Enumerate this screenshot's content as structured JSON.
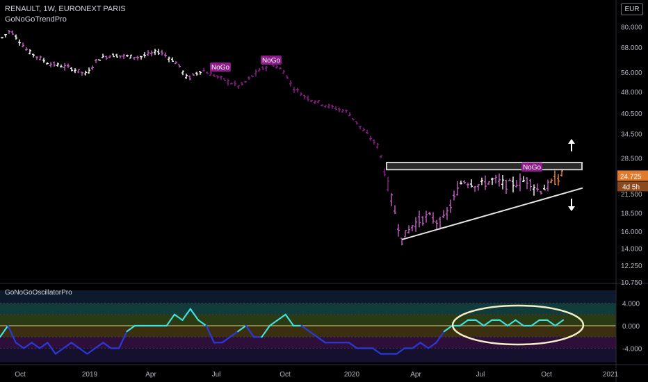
{
  "header": {
    "symbol_line": "RENAULT, 1W, EURONEXT PARIS",
    "indicator_main": "GoNoGoTrendPro",
    "indicator_osc": "GoNoGoOscillatorPro",
    "currency": "EUR"
  },
  "price_axis": {
    "ticks": [
      "80.000",
      "68.000",
      "56.000",
      "48.000",
      "40.500",
      "34.500",
      "28.500",
      "21.500",
      "18.500",
      "16.000",
      "14.000",
      "12.250",
      "10.750"
    ],
    "last_price": "24.725",
    "countdown": "4d 5h",
    "last_price_color": "#e07b2e"
  },
  "osc_axis": {
    "ticks": [
      "4.000",
      "0.000",
      "-4.000"
    ]
  },
  "time_axis": {
    "ticks": [
      "Oct",
      "2019",
      "Apr",
      "Jul",
      "Oct",
      "2020",
      "Apr",
      "Jul",
      "Oct",
      "2021"
    ]
  },
  "annotations": {
    "nogo_labels": [
      "NoGo",
      "NoGo",
      "NoGo"
    ]
  },
  "colors": {
    "nogo": "#8e1c8a",
    "nogo_light": "#c65fc4",
    "go": "#ffffff",
    "weak_go": "#f08a3a",
    "osc_go": "#3ee0e0",
    "osc_nogo": "#2a3ad8",
    "ellipse": "#f3f0c8"
  },
  "chart_data": [
    {
      "type": "ohlc",
      "title": "RENAULT, 1W, EURONEXT PARIS",
      "yscale": "log",
      "ylim": [
        10.75,
        88
      ],
      "series": [
        {
          "name": "GoNoGoTrendPro",
          "note": "weekly bars colored by trend state"
        }
      ],
      "x": [
        "2018-09",
        "2018-10",
        "2018-11",
        "2018-12",
        "2019-01",
        "2019-02",
        "2019-03",
        "2019-04",
        "2019-05",
        "2019-06",
        "2019-07",
        "2019-08",
        "2019-09",
        "2019-10",
        "2019-11",
        "2019-12",
        "2020-01",
        "2020-02",
        "2020-03",
        "2020-04",
        "2020-05",
        "2020-06",
        "2020-07",
        "2020-08",
        "2020-09",
        "2020-10"
      ],
      "close_approx": [
        76,
        71,
        66,
        63,
        62,
        64,
        63,
        62,
        56,
        54,
        53,
        52,
        56,
        48,
        44,
        42,
        40,
        35,
        16,
        17,
        18,
        22,
        23,
        24,
        23,
        24.7
      ],
      "resistance_zone": [
        26.0,
        27.5
      ],
      "trendline_support": [
        {
          "x": "2020-03",
          "y": 15.0
        },
        {
          "x": "2020-11",
          "y": 22.5
        }
      ]
    },
    {
      "type": "line",
      "title": "GoNoGoOscillatorPro",
      "ylim": [
        -6.5,
        6.5
      ],
      "series": [
        {
          "name": "GoNoGoOscillatorPro",
          "values": [
            -2,
            0,
            -3,
            -4,
            -3,
            -4,
            -3,
            -5,
            -4,
            -3,
            -4,
            -5,
            -4,
            -3,
            -4,
            -4,
            -1,
            0,
            0,
            0,
            0,
            0,
            2,
            1,
            3,
            1,
            0,
            -3,
            -3,
            -2,
            -1,
            0,
            -2,
            -2,
            0,
            1,
            2,
            0,
            0,
            -1,
            -2,
            -3,
            -3,
            -3,
            -3,
            -4,
            -4,
            -4,
            -5,
            -5,
            -5,
            -4,
            -4,
            -3,
            -4,
            -3,
            -1,
            0,
            0,
            1,
            1,
            0,
            1,
            1,
            0,
            1,
            0,
            0,
            1,
            1,
            0,
            1
          ]
        }
      ]
    }
  ]
}
